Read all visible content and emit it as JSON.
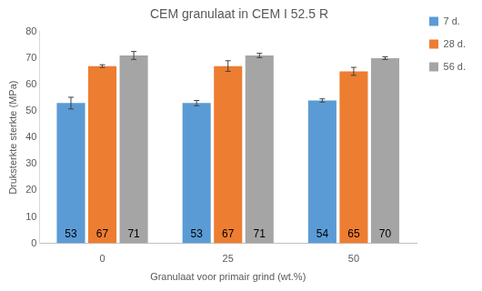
{
  "chart_data": {
    "type": "bar",
    "title": "CEM granulaat in CEM I 52.5 R",
    "x_label": "Granulaat voor primair grind (wt.%)",
    "y_label": "Druksterkte sterkte (MPa)",
    "categories": [
      "0",
      "25",
      "50"
    ],
    "series": [
      {
        "name": "7 d.",
        "color": "#5B9BD5",
        "values": [
          53,
          53,
          54
        ],
        "errors": [
          2.2,
          1,
          0.6
        ]
      },
      {
        "name": "28 d.",
        "color": "#ED7D31",
        "values": [
          67,
          67,
          65
        ],
        "errors": [
          0.5,
          2,
          1.5
        ]
      },
      {
        "name": "56 d.",
        "color": "#A5A5A5",
        "values": [
          71,
          71,
          70
        ],
        "errors": [
          1.5,
          0.8,
          0.5
        ]
      }
    ],
    "ylim": [
      0,
      80
    ],
    "yticks": [
      0,
      10,
      20,
      30,
      40,
      50,
      60,
      70,
      80
    ],
    "grid": false,
    "legend": "right",
    "data_labels": true
  }
}
